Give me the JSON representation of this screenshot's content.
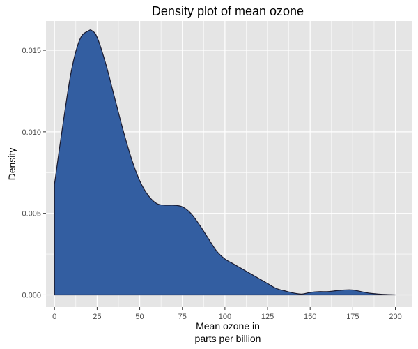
{
  "chart_data": {
    "type": "area",
    "title": "Density plot of mean ozone",
    "xlabel": [
      "Mean ozone in",
      "parts per billion"
    ],
    "ylabel": "Density",
    "xlim": [
      -5,
      210
    ],
    "ylim": [
      -0.00075,
      0.0168
    ],
    "x_ticks": [
      0,
      25,
      50,
      75,
      100,
      125,
      150,
      175,
      200
    ],
    "y_ticks": [
      0.0,
      0.005,
      0.01,
      0.015
    ],
    "y_tick_labels": [
      "0.000",
      "0.005",
      "0.010",
      "0.015"
    ],
    "grid": true,
    "legend": "none",
    "series": [
      {
        "x": [
          0,
          5,
          10,
          15,
          20,
          22,
          25,
          30,
          35,
          40,
          45,
          50,
          55,
          60,
          65,
          70,
          75,
          80,
          85,
          90,
          95,
          100,
          105,
          110,
          115,
          120,
          125,
          130,
          135,
          140,
          145,
          150,
          155,
          160,
          165,
          170,
          175,
          180,
          185,
          190,
          195,
          200
        ],
        "y": [
          0.0068,
          0.0105,
          0.0138,
          0.0157,
          0.0162,
          0.0162,
          0.0158,
          0.0142,
          0.0122,
          0.0102,
          0.0084,
          0.007,
          0.0061,
          0.0056,
          0.0055,
          0.0055,
          0.0054,
          0.005,
          0.0043,
          0.0035,
          0.0027,
          0.0022,
          0.0019,
          0.0016,
          0.0013,
          0.001,
          0.0007,
          0.0004,
          0.00025,
          0.00012,
          5e-05,
          0.00015,
          0.0002,
          0.0002,
          0.00025,
          0.0003,
          0.0003,
          0.0002,
          0.0001,
          5e-05,
          2e-05,
          0.0
        ]
      }
    ]
  },
  "colors": {
    "panel_background": "#e5e5e5",
    "grid": "#ffffff",
    "fill": "#335ea1",
    "outline": "#1a1a2e",
    "tick": "#333333"
  }
}
